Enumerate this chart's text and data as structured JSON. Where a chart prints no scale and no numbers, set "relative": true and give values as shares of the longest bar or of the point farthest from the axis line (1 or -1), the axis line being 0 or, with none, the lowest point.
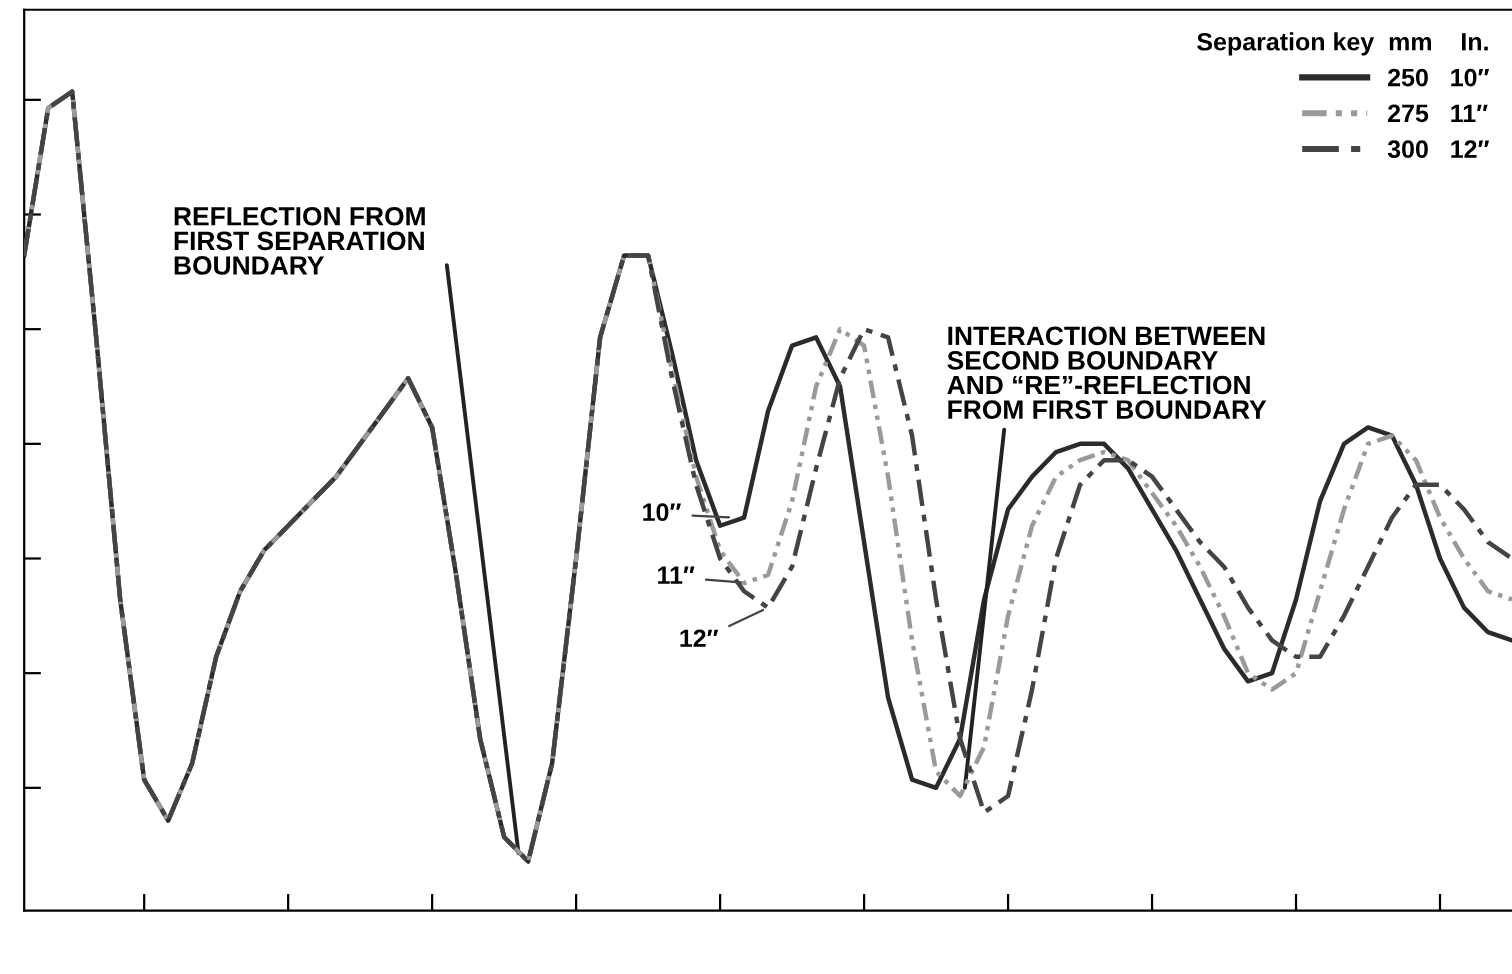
{
  "chart_data": {
    "type": "line",
    "relative": true,
    "tick_labels": false,
    "grid": false,
    "legend": "top right",
    "marker": "none",
    "legend_title": "Separation key  mm    In.",
    "categories": [
      null,
      null,
      null,
      null,
      null,
      null,
      null,
      null,
      null,
      null,
      null,
      null,
      null,
      null,
      null,
      null,
      null,
      null,
      null,
      null,
      null,
      null,
      null,
      null,
      null,
      null,
      null,
      null,
      null,
      null,
      null,
      null,
      null,
      null,
      null,
      null,
      null,
      null,
      null,
      null,
      null,
      null,
      null,
      null,
      null,
      null,
      null,
      null,
      null,
      null,
      null,
      null,
      null,
      null,
      null,
      null,
      null,
      null,
      null,
      null,
      null,
      null,
      null
    ],
    "series": [
      {
        "name": "250   10″",
        "color": "#2b2b2b",
        "line_style": "solid",
        "values": [
          0.8,
          0.98,
          1.0,
          0.7,
          0.38,
          0.16,
          0.11,
          0.18,
          0.31,
          0.39,
          0.44,
          0.47,
          0.5,
          0.53,
          0.57,
          0.61,
          0.65,
          0.59,
          0.41,
          0.21,
          0.09,
          0.06,
          0.18,
          0.43,
          0.7,
          0.8,
          0.8,
          0.68,
          0.55,
          0.47,
          0.48,
          0.61,
          0.69,
          0.7,
          0.64,
          0.45,
          0.26,
          0.16,
          0.15,
          0.21,
          0.38,
          0.49,
          0.53,
          0.56,
          0.57,
          0.57,
          0.54,
          0.49,
          0.44,
          0.38,
          0.32,
          0.28,
          0.29,
          0.38,
          0.5,
          0.57,
          0.59,
          0.58,
          0.52,
          0.43,
          0.37,
          0.34,
          0.33
        ]
      },
      {
        "name": "275   11″",
        "color": "#9a9a9a",
        "line_style": "dotted",
        "values": [
          0.8,
          0.98,
          1.0,
          0.7,
          0.38,
          0.16,
          0.11,
          0.18,
          0.31,
          0.39,
          0.44,
          0.47,
          0.5,
          0.53,
          0.57,
          0.61,
          0.65,
          0.59,
          0.41,
          0.21,
          0.09,
          0.06,
          0.18,
          0.43,
          0.7,
          0.8,
          0.8,
          0.66,
          0.53,
          0.44,
          0.4,
          0.41,
          0.5,
          0.64,
          0.71,
          0.69,
          0.53,
          0.33,
          0.17,
          0.14,
          0.2,
          0.36,
          0.47,
          0.53,
          0.55,
          0.56,
          0.55,
          0.51,
          0.47,
          0.42,
          0.36,
          0.29,
          0.27,
          0.29,
          0.39,
          0.49,
          0.57,
          0.58,
          0.55,
          0.48,
          0.43,
          0.39,
          0.38
        ]
      },
      {
        "name": "300   12″",
        "color": "#444444",
        "line_style": "dashed",
        "values": [
          0.8,
          0.98,
          1.0,
          0.7,
          0.38,
          0.16,
          0.11,
          0.18,
          0.31,
          0.39,
          0.44,
          0.47,
          0.5,
          0.53,
          0.57,
          0.61,
          0.65,
          0.59,
          0.41,
          0.21,
          0.09,
          0.06,
          0.18,
          0.43,
          0.7,
          0.8,
          0.8,
          0.65,
          0.52,
          0.43,
          0.39,
          0.37,
          0.42,
          0.54,
          0.65,
          0.71,
          0.7,
          0.58,
          0.38,
          0.21,
          0.12,
          0.14,
          0.27,
          0.43,
          0.52,
          0.55,
          0.55,
          0.53,
          0.49,
          0.45,
          0.42,
          0.37,
          0.33,
          0.31,
          0.31,
          0.36,
          0.42,
          0.48,
          0.52,
          0.52,
          0.49,
          0.45,
          0.43
        ]
      }
    ],
    "annotations": [
      "REFLECTION FROM\nFIRST SEPARATION\nBOUNDARY",
      "INTERACTION BETWEEN\nSECOND BOUNDARY\nAND “RE”-REFLECTION\nFROM FIRST BOUNDARY",
      "10″",
      "11″",
      "12″"
    ]
  }
}
